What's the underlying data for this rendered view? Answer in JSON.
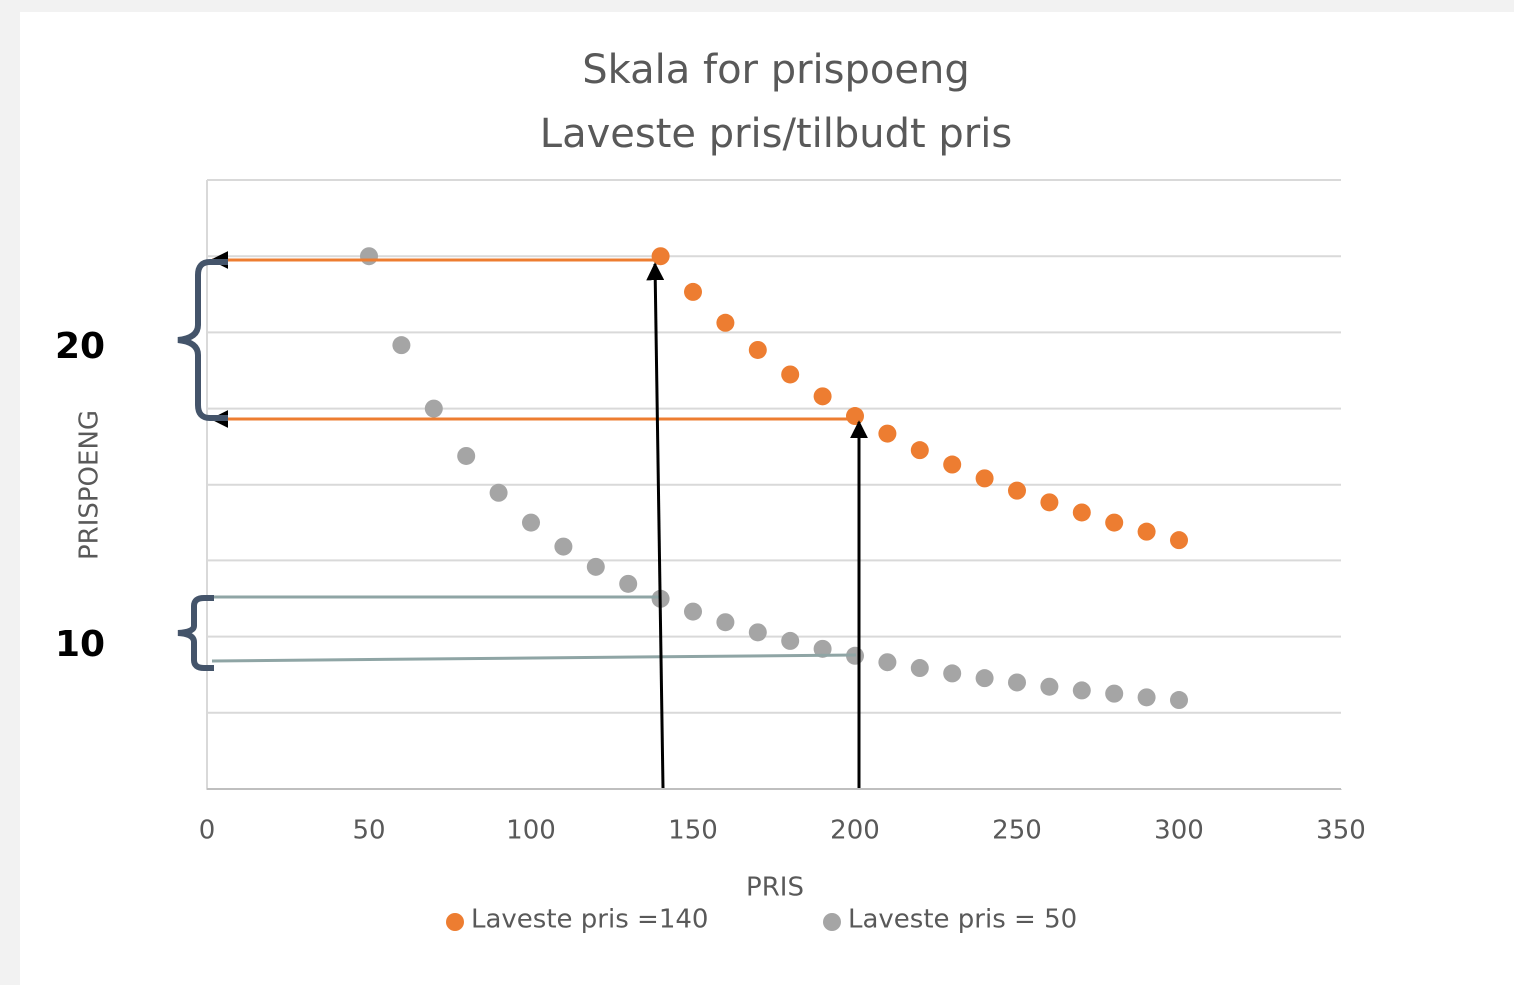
{
  "chart_data": {
    "type": "scatter",
    "title": [
      "Skala for prispoeng",
      "Laveste pris/tilbudt pris"
    ],
    "xlabel": "PRIS",
    "ylabel": "PRISPOENG",
    "xlim": [
      0,
      350
    ],
    "xticks": [
      0,
      50,
      100,
      150,
      200,
      250,
      300,
      350
    ],
    "ylim": [
      0,
      114.3
    ],
    "yticks": [
      0,
      14.3,
      28.6,
      42.9,
      57.1,
      71.4,
      85.7,
      100,
      114.3
    ],
    "show_ytick_labels": false,
    "grid": true,
    "legend": "bottom",
    "series": [
      {
        "name": "Laveste pris =140",
        "color": "#ed7d31",
        "x": [
          140,
          150,
          160,
          170,
          180,
          190,
          200,
          210,
          220,
          230,
          240,
          250,
          260,
          270,
          280,
          290,
          300
        ],
        "values": [
          100,
          93.3,
          87.5,
          82.4,
          77.8,
          73.7,
          70,
          66.7,
          63.6,
          60.9,
          58.3,
          56,
          53.8,
          51.9,
          50,
          48.3,
          46.7
        ]
      },
      {
        "name": "Laveste pris = 50",
        "color": "#a5a5a5",
        "x": [
          50,
          60,
          70,
          80,
          90,
          100,
          110,
          120,
          130,
          140,
          150,
          160,
          170,
          180,
          190,
          200,
          210,
          220,
          230,
          240,
          250,
          260,
          270,
          280,
          290,
          300
        ],
        "values": [
          100,
          83.3,
          71.4,
          62.5,
          55.6,
          50,
          45.5,
          41.7,
          38.5,
          35.7,
          33.3,
          31.3,
          29.4,
          27.8,
          26.3,
          25,
          23.8,
          22.7,
          21.7,
          20.8,
          20,
          19.2,
          18.5,
          17.9,
          17.2,
          16.7
        ]
      }
    ],
    "annotations": [
      "20",
      "10"
    ]
  }
}
